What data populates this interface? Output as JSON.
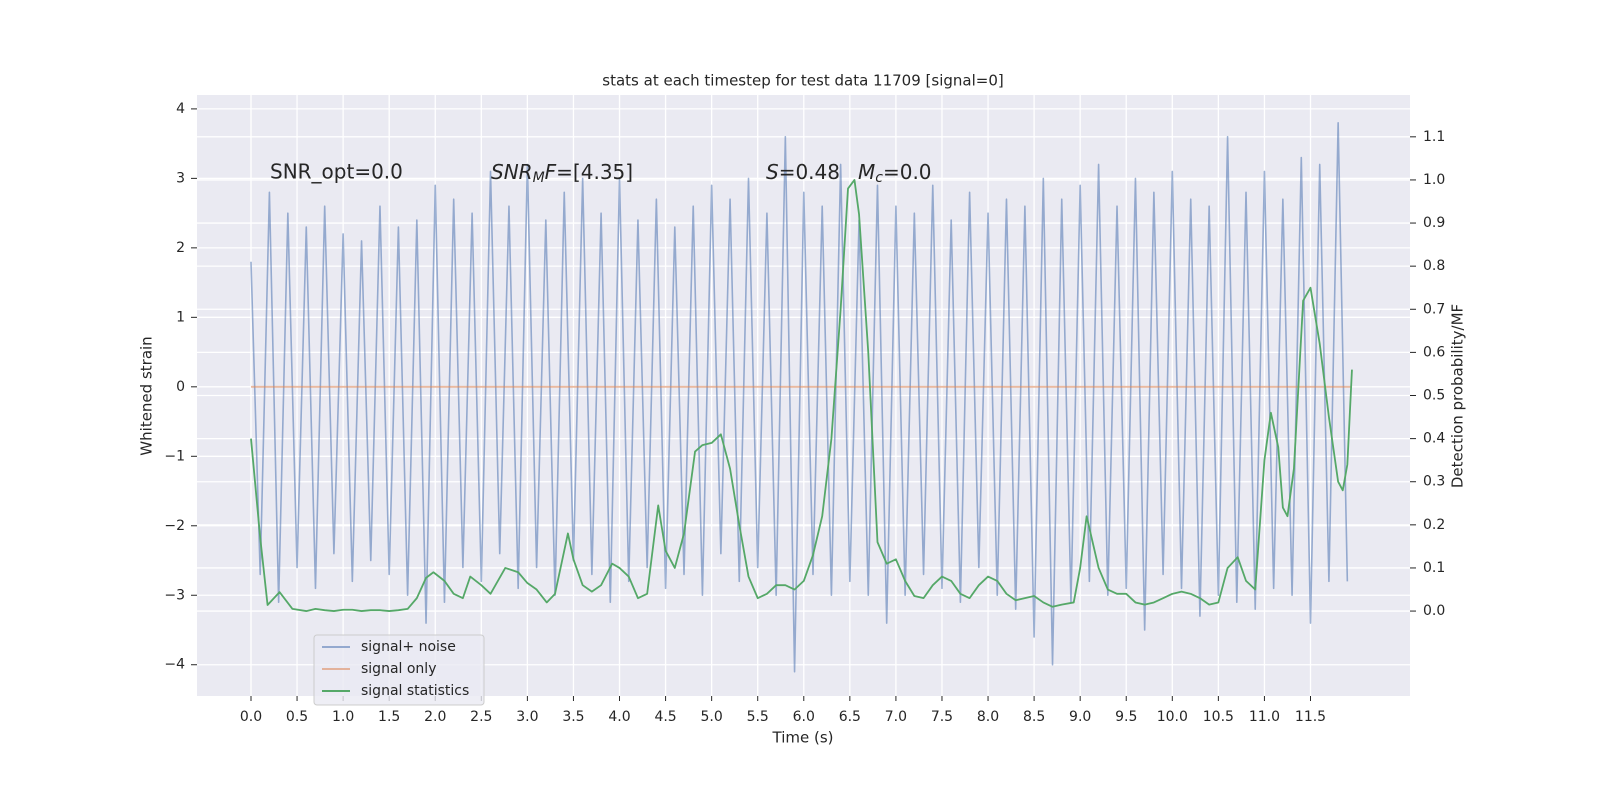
{
  "chart_data": {
    "type": "line",
    "title": "stats at each timestep for test data 11709 [signal=0]",
    "xlabel": "Time (s)",
    "ylabel": "Whitened strain",
    "y2label": "Detection probability/MF",
    "grid": true,
    "legend": "lower left",
    "xlim": [
      -0.586,
      12.58
    ],
    "ylim": [
      -4.45,
      4.2
    ],
    "y2lim": [
      -0.197,
      1.197
    ],
    "xticks": [
      {
        "value": 0,
        "label": "0.0"
      },
      {
        "value": 0.5,
        "label": "0.5"
      },
      {
        "value": 1,
        "label": "1.0"
      },
      {
        "value": 1.5,
        "label": "1.5"
      },
      {
        "value": 2,
        "label": "2.0"
      },
      {
        "value": 2.5,
        "label": "2.5"
      },
      {
        "value": 3,
        "label": "3.0"
      },
      {
        "value": 3.5,
        "label": "3.5"
      },
      {
        "value": 4,
        "label": "4.0"
      },
      {
        "value": 4.5,
        "label": "4.5"
      },
      {
        "value": 5,
        "label": "5.0"
      },
      {
        "value": 5.5,
        "label": "5.5"
      },
      {
        "value": 6,
        "label": "6.0"
      },
      {
        "value": 6.5,
        "label": "6.5"
      },
      {
        "value": 7,
        "label": "7.0"
      },
      {
        "value": 7.5,
        "label": "7.5"
      },
      {
        "value": 8,
        "label": "8.0"
      },
      {
        "value": 8.5,
        "label": "8.5"
      },
      {
        "value": 9,
        "label": "9.0"
      },
      {
        "value": 9.5,
        "label": "9.5"
      },
      {
        "value": 10,
        "label": "10.0"
      },
      {
        "value": 10.5,
        "label": "10.5"
      },
      {
        "value": 11,
        "label": "11.0"
      },
      {
        "value": 11.5,
        "label": "11.5"
      }
    ],
    "yticks": [
      {
        "value": -4,
        "label": "−4"
      },
      {
        "value": -3,
        "label": "−3"
      },
      {
        "value": -2,
        "label": "−2"
      },
      {
        "value": -1,
        "label": "−1"
      },
      0,
      1,
      2,
      3,
      4
    ],
    "y2ticks": [
      {
        "value": 0,
        "label": "0.0"
      },
      {
        "value": 0.1,
        "label": "0.1"
      },
      {
        "value": 0.2,
        "label": "0.2"
      },
      {
        "value": 0.3,
        "label": "0.3"
      },
      {
        "value": 0.4,
        "label": "0.4"
      },
      {
        "value": 0.5,
        "label": "0.5"
      },
      {
        "value": 0.6,
        "label": "0.6"
      },
      {
        "value": 0.7,
        "label": "0.7"
      },
      {
        "value": 0.8,
        "label": "0.8"
      },
      {
        "value": 0.9,
        "label": "0.9"
      },
      {
        "value": 1,
        "label": "1.0"
      },
      {
        "value": 1.1,
        "label": "1.1"
      }
    ],
    "annotations": [
      {
        "text": "SNR_opt=0.0"
      },
      {
        "parts": [
          {
            "text": "SNR",
            "italic": true
          },
          {
            "text": "M",
            "italic": true,
            "sub": true
          },
          {
            "text": "F",
            "italic": true
          },
          {
            "text": "=[4.35]"
          }
        ]
      },
      {
        "parts": [
          {
            "text": "S",
            "italic": true
          },
          {
            "text": "=0.48"
          }
        ]
      },
      {
        "parts": [
          {
            "text": "M",
            "italic": true
          },
          {
            "text": "c",
            "italic": true,
            "sub": true
          },
          {
            "text": "=0.0"
          }
        ]
      }
    ],
    "series": [
      {
        "name": "signal+ noise",
        "color": "#4c72b0",
        "opacity": 0.55,
        "x": [
          0,
          0.1,
          0.2,
          0.3,
          0.4,
          0.5,
          0.6,
          0.7,
          0.8,
          0.9,
          1,
          1.1,
          1.2,
          1.3,
          1.4,
          1.5,
          1.6,
          1.7,
          1.8,
          1.9,
          2,
          2.1,
          2.2,
          2.3,
          2.4,
          2.5,
          2.6,
          2.7,
          2.8,
          2.9,
          3,
          3.1,
          3.2,
          3.3,
          3.4,
          3.5,
          3.6,
          3.7,
          3.8,
          3.9,
          4,
          4.1,
          4.2,
          4.3,
          4.4,
          4.5,
          4.6,
          4.7,
          4.8,
          4.9,
          5,
          5.1,
          5.2,
          5.3,
          5.4,
          5.5,
          5.6,
          5.7,
          5.8,
          5.9,
          6,
          6.1,
          6.2,
          6.3,
          6.4,
          6.5,
          6.6,
          6.7,
          6.8,
          6.9,
          7,
          7.1,
          7.2,
          7.3,
          7.4,
          7.5,
          7.6,
          7.7,
          7.8,
          7.9,
          8,
          8.1,
          8.2,
          8.3,
          8.4,
          8.5,
          8.6,
          8.7,
          8.8,
          8.9,
          9,
          9.1,
          9.2,
          9.3,
          9.4,
          9.5,
          9.6,
          9.7,
          9.8,
          9.9,
          10,
          10.1,
          10.2,
          10.3,
          10.4,
          10.5,
          10.6,
          10.7,
          10.8,
          10.9,
          11,
          11.1,
          11.2,
          11.3,
          11.4,
          11.5,
          11.6,
          11.7,
          11.8,
          11.9
        ],
        "values": [
          1.8,
          -2.7,
          2.8,
          -3.1,
          2.5,
          -2.6,
          2.3,
          -2.9,
          2.6,
          -2.4,
          2.2,
          -2.8,
          2.1,
          -2.5,
          2.6,
          -2.7,
          2.3,
          -3.0,
          2.4,
          -3.4,
          2.9,
          -3.1,
          2.7,
          -2.6,
          2.5,
          -2.8,
          3.1,
          -2.4,
          2.6,
          -2.9,
          3.2,
          -2.6,
          2.4,
          -3.0,
          2.8,
          -2.5,
          3.0,
          -2.7,
          2.5,
          -3.1,
          3.0,
          -2.8,
          2.4,
          -2.6,
          2.7,
          -2.9,
          2.3,
          -2.7,
          2.6,
          -3.0,
          2.9,
          -2.4,
          2.7,
          -2.8,
          3.0,
          -2.6,
          2.5,
          -3.0,
          3.6,
          -4.1,
          2.8,
          -2.7,
          2.6,
          -3.0,
          3.2,
          -2.8,
          2.4,
          -3.0,
          2.9,
          -3.4,
          2.6,
          -3.0,
          2.5,
          -2.7,
          2.9,
          -2.9,
          2.4,
          -3.1,
          2.8,
          -2.6,
          2.5,
          -3.0,
          2.7,
          -3.2,
          2.6,
          -3.6,
          3.0,
          -4.0,
          2.7,
          -3.1,
          2.9,
          -2.8,
          3.2,
          -3.0,
          2.6,
          -2.9,
          3.0,
          -3.5,
          2.8,
          -2.7,
          3.1,
          -2.9,
          2.7,
          -3.3,
          2.6,
          -3.0,
          3.6,
          -3.1,
          2.8,
          -3.2,
          3.1,
          -2.9,
          2.7,
          -3.0,
          3.3,
          -3.4,
          3.2,
          -2.8,
          3.8,
          -2.8
        ]
      },
      {
        "name": "signal only",
        "color": "#dd8452",
        "opacity": 0.55,
        "x": [
          0,
          11.95
        ],
        "values": [
          0,
          0
        ]
      },
      {
        "name": "signal statistics",
        "color": "#55a868",
        "opacity": 1,
        "axis": "y2",
        "x": [
          0,
          0.1,
          0.18,
          0.31,
          0.45,
          0.6,
          0.7,
          0.8,
          0.9,
          1.0,
          1.1,
          1.2,
          1.3,
          1.4,
          1.5,
          1.6,
          1.7,
          1.8,
          1.9,
          1.98,
          2.1,
          2.2,
          2.3,
          2.38,
          2.5,
          2.6,
          2.76,
          2.9,
          3.0,
          3.1,
          3.21,
          3.3,
          3.44,
          3.5,
          3.6,
          3.7,
          3.8,
          3.92,
          4.0,
          4.1,
          4.2,
          4.3,
          4.42,
          4.5,
          4.6,
          4.7,
          4.82,
          4.9,
          5.0,
          5.1,
          5.2,
          5.3,
          5.4,
          5.5,
          5.6,
          5.7,
          5.8,
          5.9,
          6.0,
          6.1,
          6.2,
          6.3,
          6.4,
          6.48,
          6.55,
          6.6,
          6.7,
          6.8,
          6.9,
          7.0,
          7.1,
          7.2,
          7.3,
          7.4,
          7.5,
          7.6,
          7.7,
          7.8,
          7.9,
          8.0,
          8.1,
          8.2,
          8.3,
          8.4,
          8.5,
          8.6,
          8.7,
          8.8,
          8.93,
          9.0,
          9.07,
          9.2,
          9.3,
          9.4,
          9.5,
          9.6,
          9.7,
          9.8,
          9.9,
          10.0,
          10.1,
          10.2,
          10.3,
          10.4,
          10.5,
          10.6,
          10.71,
          10.8,
          10.9,
          11.0,
          11.07,
          11.15,
          11.2,
          11.25,
          11.32,
          11.42,
          11.5,
          11.6,
          11.7,
          11.8,
          11.85,
          11.9,
          11.95
        ],
        "values": [
          0.4,
          0.17,
          0.014,
          0.044,
          0.005,
          0.0,
          0.005,
          0.002,
          0.0,
          0.003,
          0.003,
          0.0,
          0.002,
          0.002,
          0.0,
          0.002,
          0.005,
          0.03,
          0.077,
          0.09,
          0.07,
          0.04,
          0.03,
          0.08,
          0.06,
          0.04,
          0.1,
          0.09,
          0.065,
          0.05,
          0.02,
          0.04,
          0.18,
          0.12,
          0.06,
          0.045,
          0.06,
          0.11,
          0.1,
          0.08,
          0.03,
          0.04,
          0.245,
          0.14,
          0.1,
          0.18,
          0.37,
          0.385,
          0.39,
          0.41,
          0.33,
          0.2,
          0.08,
          0.03,
          0.04,
          0.06,
          0.06,
          0.05,
          0.07,
          0.13,
          0.22,
          0.4,
          0.7,
          0.98,
          1.0,
          0.92,
          0.6,
          0.16,
          0.11,
          0.12,
          0.07,
          0.035,
          0.03,
          0.06,
          0.08,
          0.07,
          0.04,
          0.03,
          0.06,
          0.08,
          0.07,
          0.04,
          0.025,
          0.03,
          0.035,
          0.02,
          0.01,
          0.015,
          0.02,
          0.1,
          0.22,
          0.1,
          0.05,
          0.04,
          0.04,
          0.02,
          0.015,
          0.02,
          0.03,
          0.04,
          0.045,
          0.04,
          0.03,
          0.015,
          0.02,
          0.1,
          0.125,
          0.07,
          0.05,
          0.35,
          0.46,
          0.38,
          0.24,
          0.22,
          0.33,
          0.72,
          0.75,
          0.62,
          0.45,
          0.3,
          0.28,
          0.34,
          0.56
        ]
      }
    ]
  }
}
